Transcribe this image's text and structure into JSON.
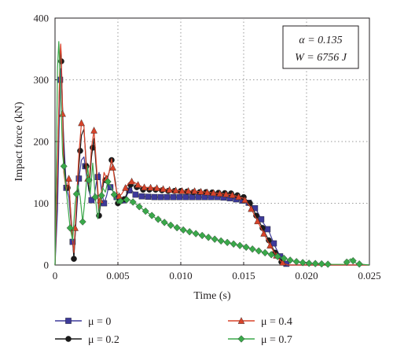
{
  "chart_data": {
    "type": "line",
    "xlabel": "Time (s)",
    "ylabel": "Impact force (kN)",
    "xlim": [
      0,
      0.025
    ],
    "ylim": [
      0,
      400
    ],
    "xticks": [
      0,
      0.005,
      0.01,
      0.015,
      0.02,
      0.025
    ],
    "xtick_labels": [
      "0",
      "0.005",
      "0.010",
      "0.015",
      "0.020",
      "0.025"
    ],
    "yticks": [
      0,
      100,
      200,
      300,
      400
    ],
    "ytick_labels": [
      "0",
      "100",
      "200",
      "300",
      "400"
    ],
    "grid": true,
    "legend_position": "below",
    "annotation": {
      "line1": "α = 0.135",
      "line2": "W = 6756 J"
    },
    "series": [
      {
        "name": "μ = 0",
        "color": "#3d3a9a",
        "marker": "square",
        "points": [
          [
            0,
            0
          ],
          [
            0.0002,
            90
          ],
          [
            0.0004,
            300
          ],
          [
            0.00045,
            318
          ],
          [
            0.0005,
            300
          ],
          [
            0.0007,
            200
          ],
          [
            0.0009,
            125
          ],
          [
            0.0011,
            110
          ],
          [
            0.0013,
            60
          ],
          [
            0.0015,
            15
          ],
          [
            0.0017,
            80
          ],
          [
            0.0019,
            140
          ],
          [
            0.0021,
            170
          ],
          [
            0.0023,
            175
          ],
          [
            0.0025,
            145
          ],
          [
            0.0027,
            120
          ],
          [
            0.0029,
            105
          ],
          [
            0.0031,
            110
          ],
          [
            0.0033,
            135
          ],
          [
            0.0035,
            150
          ],
          [
            0.0037,
            120
          ],
          [
            0.0039,
            100
          ],
          [
            0.0041,
            112
          ],
          [
            0.0043,
            130
          ],
          [
            0.0045,
            122
          ],
          [
            0.0048,
            115
          ],
          [
            0.005,
            105
          ],
          [
            0.0053,
            103
          ],
          [
            0.0056,
            108
          ],
          [
            0.006,
            125
          ],
          [
            0.0063,
            115
          ],
          [
            0.0066,
            112
          ],
          [
            0.007,
            111
          ],
          [
            0.008,
            110
          ],
          [
            0.009,
            110
          ],
          [
            0.01,
            110
          ],
          [
            0.011,
            110
          ],
          [
            0.012,
            110
          ],
          [
            0.013,
            110
          ],
          [
            0.014,
            108
          ],
          [
            0.015,
            104
          ],
          [
            0.0155,
            100
          ],
          [
            0.016,
            90
          ],
          [
            0.0165,
            70
          ],
          [
            0.017,
            55
          ],
          [
            0.0175,
            30
          ],
          [
            0.018,
            10
          ],
          [
            0.0185,
            0
          ],
          [
            0.019,
            0
          ],
          [
            0.025,
            0
          ]
        ]
      },
      {
        "name": "μ = 0.2",
        "color": "#1a1a1a",
        "marker": "circle",
        "points": [
          [
            0,
            0
          ],
          [
            0.0002,
            150
          ],
          [
            0.0004,
            330
          ],
          [
            0.00045,
            355
          ],
          [
            0.0005,
            330
          ],
          [
            0.0007,
            180
          ],
          [
            0.0009,
            120
          ],
          [
            0.0011,
            130
          ],
          [
            0.0013,
            70
          ],
          [
            0.0015,
            10
          ],
          [
            0.0017,
            90
          ],
          [
            0.0019,
            160
          ],
          [
            0.0021,
            210
          ],
          [
            0.0023,
            220
          ],
          [
            0.0025,
            160
          ],
          [
            0.0027,
            120
          ],
          [
            0.0029,
            175
          ],
          [
            0.0031,
            205
          ],
          [
            0.0033,
            150
          ],
          [
            0.0035,
            80
          ],
          [
            0.0037,
            110
          ],
          [
            0.0039,
            140
          ],
          [
            0.0041,
            135
          ],
          [
            0.0043,
            150
          ],
          [
            0.0045,
            170
          ],
          [
            0.0048,
            135
          ],
          [
            0.005,
            100
          ],
          [
            0.0053,
            100
          ],
          [
            0.0056,
            110
          ],
          [
            0.006,
            130
          ],
          [
            0.0063,
            128
          ],
          [
            0.0066,
            125
          ],
          [
            0.007,
            122
          ],
          [
            0.008,
            122
          ],
          [
            0.009,
            120
          ],
          [
            0.01,
            120
          ],
          [
            0.011,
            118
          ],
          [
            0.012,
            118
          ],
          [
            0.013,
            117
          ],
          [
            0.014,
            116
          ],
          [
            0.015,
            110
          ],
          [
            0.0155,
            100
          ],
          [
            0.016,
            80
          ],
          [
            0.0165,
            60
          ],
          [
            0.017,
            40
          ],
          [
            0.0175,
            20
          ],
          [
            0.018,
            5
          ],
          [
            0.0185,
            0
          ],
          [
            0.019,
            0
          ],
          [
            0.025,
            0
          ]
        ]
      },
      {
        "name": "μ = 0.4",
        "color": "#d8432a",
        "marker": "triangle",
        "points": [
          [
            0,
            0
          ],
          [
            0.0002,
            160
          ],
          [
            0.0004,
            340
          ],
          [
            0.00045,
            358
          ],
          [
            0.0005,
            340
          ],
          [
            0.0007,
            150
          ],
          [
            0.0009,
            120
          ],
          [
            0.0011,
            140
          ],
          [
            0.0013,
            60
          ],
          [
            0.0015,
            20
          ],
          [
            0.0017,
            100
          ],
          [
            0.0019,
            180
          ],
          [
            0.0021,
            230
          ],
          [
            0.0023,
            225
          ],
          [
            0.0025,
            150
          ],
          [
            0.0027,
            130
          ],
          [
            0.0029,
            190
          ],
          [
            0.0031,
            218
          ],
          [
            0.0033,
            160
          ],
          [
            0.0035,
            90
          ],
          [
            0.0037,
            120
          ],
          [
            0.0039,
            150
          ],
          [
            0.0041,
            140
          ],
          [
            0.0043,
            150
          ],
          [
            0.0045,
            172
          ],
          [
            0.0048,
            130
          ],
          [
            0.005,
            110
          ],
          [
            0.0053,
            115
          ],
          [
            0.0056,
            125
          ],
          [
            0.006,
            136
          ],
          [
            0.0063,
            134
          ],
          [
            0.0066,
            130
          ],
          [
            0.007,
            126
          ],
          [
            0.008,
            125
          ],
          [
            0.009,
            122
          ],
          [
            0.01,
            120
          ],
          [
            0.011,
            120
          ],
          [
            0.012,
            118
          ],
          [
            0.013,
            116
          ],
          [
            0.014,
            114
          ],
          [
            0.015,
            108
          ],
          [
            0.0155,
            95
          ],
          [
            0.016,
            75
          ],
          [
            0.0165,
            55
          ],
          [
            0.017,
            35
          ],
          [
            0.0175,
            18
          ],
          [
            0.018,
            5
          ],
          [
            0.0185,
            0
          ],
          [
            0.019,
            0
          ],
          [
            0.025,
            0
          ]
        ]
      },
      {
        "name": "μ = 0.7",
        "color": "#3aa84a",
        "marker": "diamond",
        "points": [
          [
            0,
            0
          ],
          [
            0.0002,
            320
          ],
          [
            0.0003,
            362
          ],
          [
            0.0004,
            310
          ],
          [
            0.0006,
            180
          ],
          [
            0.0008,
            140
          ],
          [
            0.001,
            100
          ],
          [
            0.0012,
            60
          ],
          [
            0.0014,
            40
          ],
          [
            0.0016,
            100
          ],
          [
            0.0018,
            130
          ],
          [
            0.002,
            110
          ],
          [
            0.0022,
            70
          ],
          [
            0.0024,
            110
          ],
          [
            0.0026,
            160
          ],
          [
            0.0028,
            115
          ],
          [
            0.003,
            165
          ],
          [
            0.0032,
            110
          ],
          [
            0.0034,
            75
          ],
          [
            0.0036,
            100
          ],
          [
            0.0038,
            125
          ],
          [
            0.004,
            118
          ],
          [
            0.0042,
            135
          ],
          [
            0.0044,
            128
          ],
          [
            0.0046,
            120
          ],
          [
            0.0048,
            108
          ],
          [
            0.005,
            100
          ],
          [
            0.0053,
            105
          ],
          [
            0.0056,
            106
          ],
          [
            0.006,
            105
          ],
          [
            0.007,
            90
          ],
          [
            0.008,
            76
          ],
          [
            0.009,
            66
          ],
          [
            0.01,
            58
          ],
          [
            0.011,
            52
          ],
          [
            0.012,
            46
          ],
          [
            0.013,
            40
          ],
          [
            0.014,
            35
          ],
          [
            0.015,
            30
          ],
          [
            0.016,
            24
          ],
          [
            0.017,
            18
          ],
          [
            0.018,
            12
          ],
          [
            0.019,
            6
          ],
          [
            0.02,
            3
          ],
          [
            0.021,
            2
          ],
          [
            0.022,
            1
          ],
          [
            0.023,
            1
          ],
          [
            0.0235,
            10
          ],
          [
            0.024,
            2
          ],
          [
            0.025,
            0
          ]
        ]
      }
    ]
  }
}
